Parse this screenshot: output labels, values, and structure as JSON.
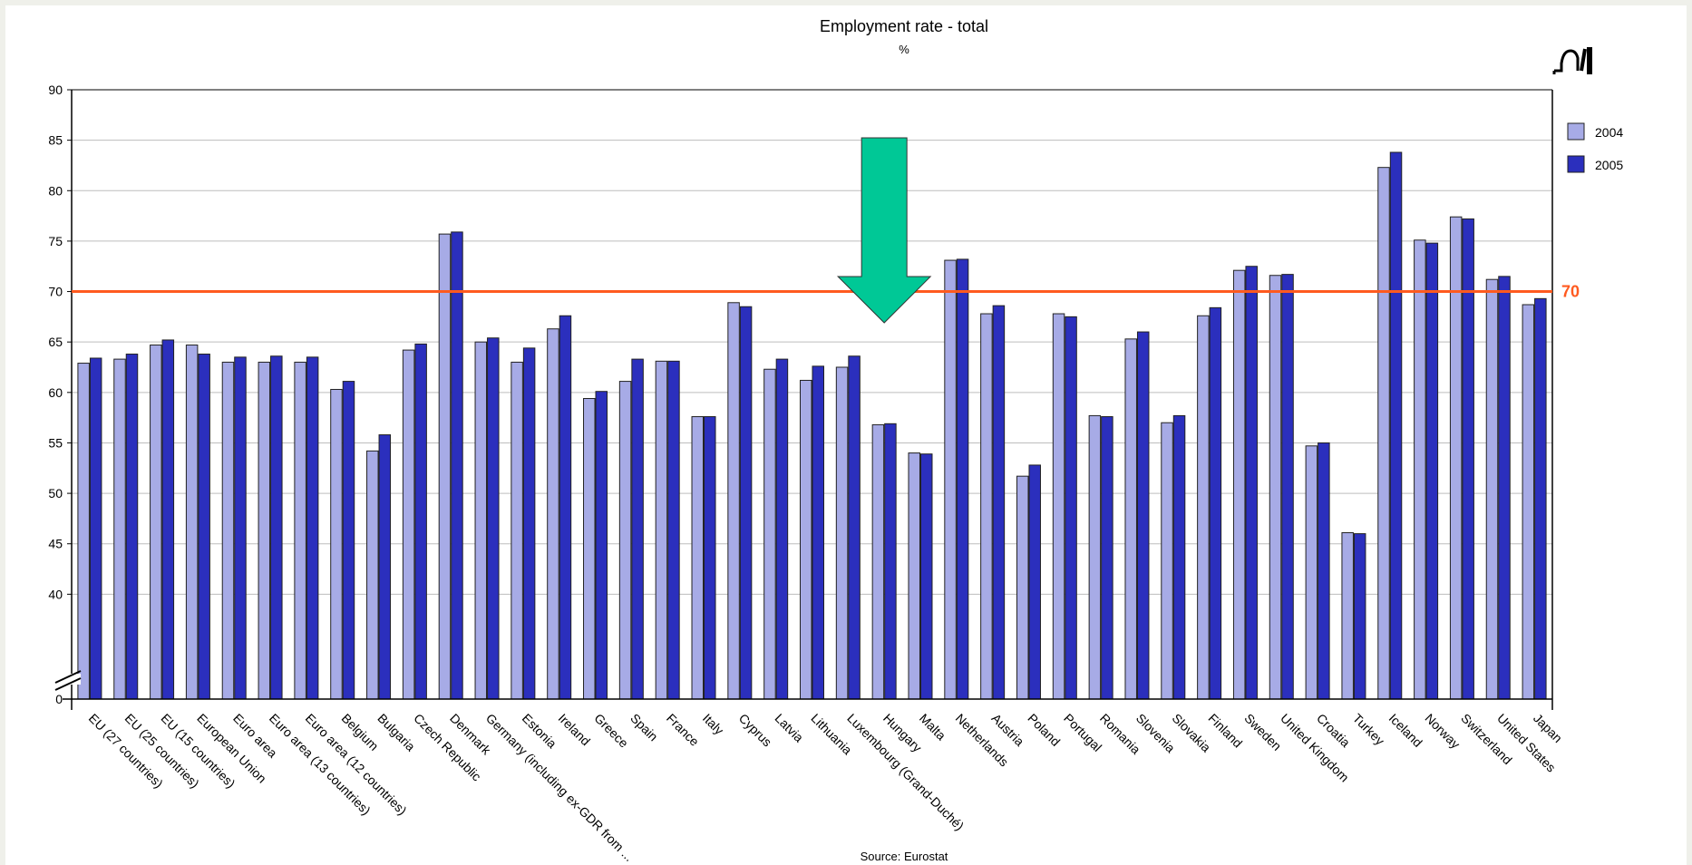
{
  "colors": {
    "series_2004": "#a7abe6",
    "series_2005": "#2b2fbd",
    "reference_line": "#ff5a1f",
    "arrow": "#00c896",
    "grid": "#bdbdbd"
  },
  "icons": {
    "chart_tool": "chart-tool-icon",
    "axis_break": "axis-break-icon",
    "highlight_arrow": "arrow-down-icon"
  },
  "chart_data": {
    "type": "bar",
    "title": "Employment rate - total",
    "subtitle": "%",
    "xlabel": "",
    "ylabel": "",
    "ylim": [
      35,
      90
    ],
    "y_axis_break": {
      "from": 0,
      "to": 35
    },
    "yticks": [
      "0",
      "40",
      "45",
      "50",
      "55",
      "60",
      "65",
      "70",
      "75",
      "80",
      "85",
      "90"
    ],
    "grid": true,
    "legend_position": "right",
    "reference_line": {
      "value": 70,
      "label": "70"
    },
    "highlight": "Hungary",
    "source": "Source: Eurostat",
    "categories": [
      "EU (27 countries)",
      "EU (25 countries)",
      "EU (15 countries)",
      "European Union",
      "Euro area",
      "Euro area (13 countries)",
      "Euro area (12 countries)",
      "Belgium",
      "Bulgaria",
      "Czech Republic",
      "Denmark",
      "Germany (including ex-GDR from ...",
      "Estonia",
      "Ireland",
      "Greece",
      "Spain",
      "France",
      "Italy",
      "Cyprus",
      "Latvia",
      "Lithuania",
      "Luxembourg (Grand-Duché)",
      "Hungary",
      "Malta",
      "Netherlands",
      "Austria",
      "Poland",
      "Portugal",
      "Romania",
      "Slovenia",
      "Slovakia",
      "Finland",
      "Sweden",
      "United Kingdom",
      "Croatia",
      "Turkey",
      "Iceland",
      "Norway",
      "Switzerland",
      "United States",
      "Japan"
    ],
    "series": [
      {
        "name": "2004",
        "values": [
          62.9,
          63.3,
          64.7,
          64.7,
          63.0,
          63.0,
          63.0,
          60.3,
          54.2,
          64.2,
          75.7,
          65.0,
          63.0,
          66.3,
          59.4,
          61.1,
          63.1,
          57.6,
          68.9,
          62.3,
          61.2,
          62.5,
          56.8,
          54.0,
          73.1,
          67.8,
          51.7,
          67.8,
          57.7,
          65.3,
          57.0,
          67.6,
          72.1,
          71.6,
          54.7,
          46.1,
          82.3,
          75.1,
          77.4,
          71.2,
          68.7
        ]
      },
      {
        "name": "2005",
        "values": [
          63.4,
          63.8,
          65.2,
          63.8,
          63.5,
          63.6,
          63.5,
          61.1,
          55.8,
          64.8,
          75.9,
          65.4,
          64.4,
          67.6,
          60.1,
          63.3,
          63.1,
          57.6,
          68.5,
          63.3,
          62.6,
          63.6,
          56.9,
          53.9,
          73.2,
          68.6,
          52.8,
          67.5,
          57.6,
          66.0,
          57.7,
          68.4,
          72.5,
          71.7,
          55.0,
          46.0,
          83.8,
          74.8,
          77.2,
          71.5,
          69.3
        ]
      }
    ]
  }
}
